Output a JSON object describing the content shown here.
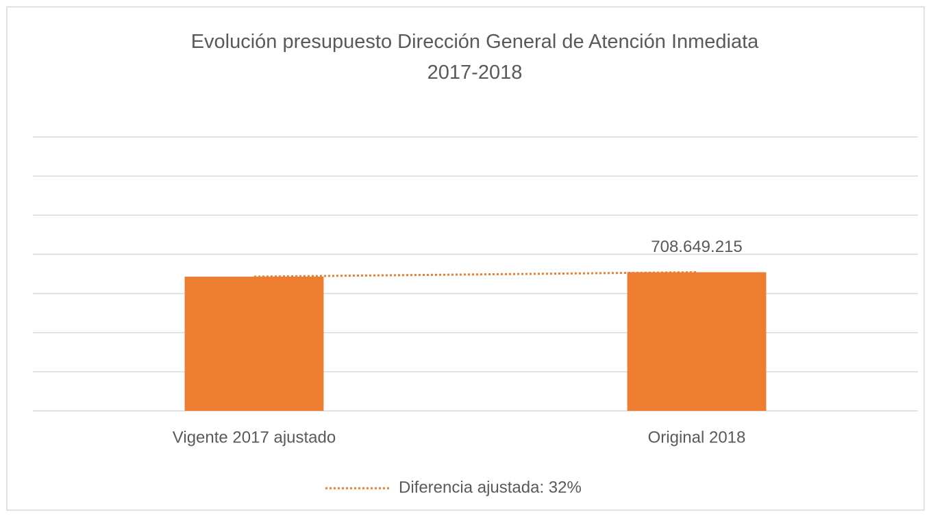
{
  "chart_data": {
    "type": "bar",
    "title": "Evolución presupuesto Dirección General de Atención Inmediata 2017-2018",
    "categories": [
      "Vigente 2017 ajustado",
      "Original 2018"
    ],
    "values": [
      686000000,
      708649215
    ],
    "value_labels": [
      null,
      "708.649.215"
    ],
    "color": "#ED7D31",
    "ylim": [
      0,
      1400000000
    ],
    "yticks": [
      0,
      200000000,
      400000000,
      600000000,
      800000000,
      1000000000,
      1200000000,
      1400000000
    ],
    "grid": true,
    "trendline": {
      "name": "Diferencia ajustada: 32%",
      "color": "#ED7D31",
      "style": "dotted"
    },
    "legend": "bottom"
  }
}
